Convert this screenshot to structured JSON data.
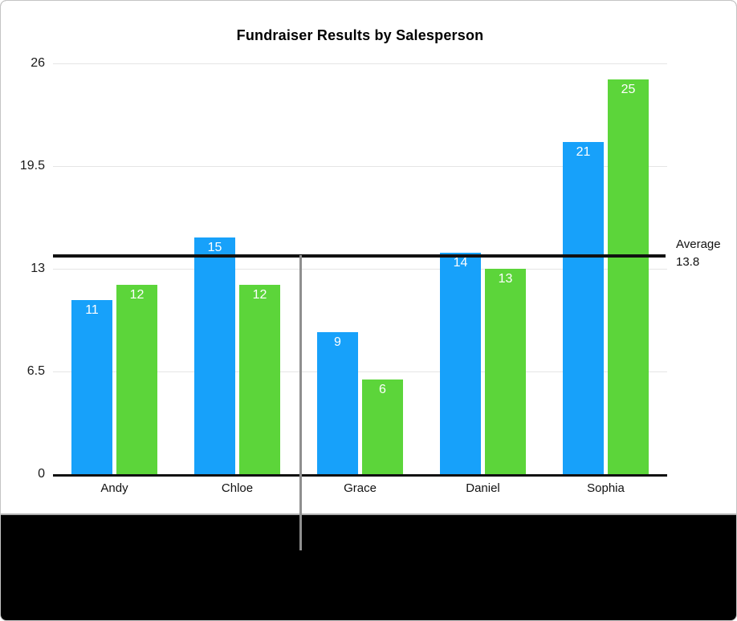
{
  "chart_data": {
    "type": "bar",
    "title": "Fundraiser Results by Salesperson",
    "categories": [
      "Andy",
      "Chloe",
      "Grace",
      "Daniel",
      "Sophia"
    ],
    "series": [
      {
        "color": "#17A1FA",
        "values": [
          11,
          15,
          9,
          14,
          21
        ]
      },
      {
        "color": "#5CD53A",
        "values": [
          12,
          12,
          6,
          13,
          25
        ]
      }
    ],
    "yticks": [
      0,
      6.5,
      13,
      19.5,
      26
    ],
    "ylim": [
      0,
      26
    ],
    "grid": true,
    "legend": "none",
    "bar_label_color": "#FFFFFF",
    "average_line": {
      "label": "Average",
      "value_label": "13.8",
      "value": 13.8,
      "color": "#111111"
    }
  },
  "annotation": {
    "pointer_color": "#8F8F8F"
  }
}
